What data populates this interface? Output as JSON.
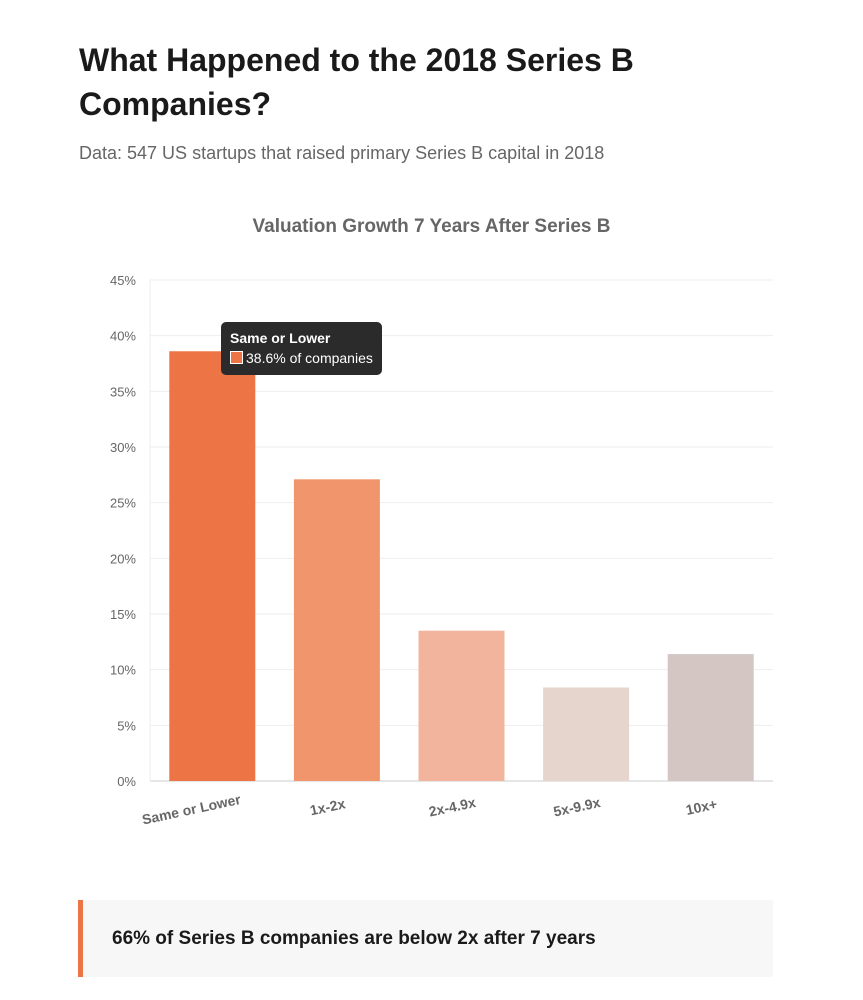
{
  "title": "What Happened to the 2018 Series B Companies?",
  "subtitle": "Data: 547 US startups that raised primary Series B capital in 2018",
  "callout": "66% of Series B companies are below 2x after 7 years",
  "tooltip": {
    "title": "Same or Lower",
    "value": "38.6% of companies"
  },
  "chart_data": {
    "type": "bar",
    "title": "Valuation Growth 7 Years After Series B",
    "categories": [
      "Same or Lower",
      "1x-2x",
      "2x-4.9x",
      "5x-9.9x",
      "10x+"
    ],
    "values": [
      38.6,
      27.1,
      13.5,
      8.4,
      11.4
    ],
    "colors": [
      "#ED7545",
      "#F0956C",
      "#F3B49E",
      "#E6D5CD",
      "#D3C6C3"
    ],
    "ylim": [
      0,
      45
    ],
    "yticks": [
      "0%",
      "5%",
      "10%",
      "15%",
      "20%",
      "25%",
      "30%",
      "35%",
      "40%",
      "45%"
    ],
    "grid": true,
    "xlabel": "",
    "ylabel": ""
  }
}
